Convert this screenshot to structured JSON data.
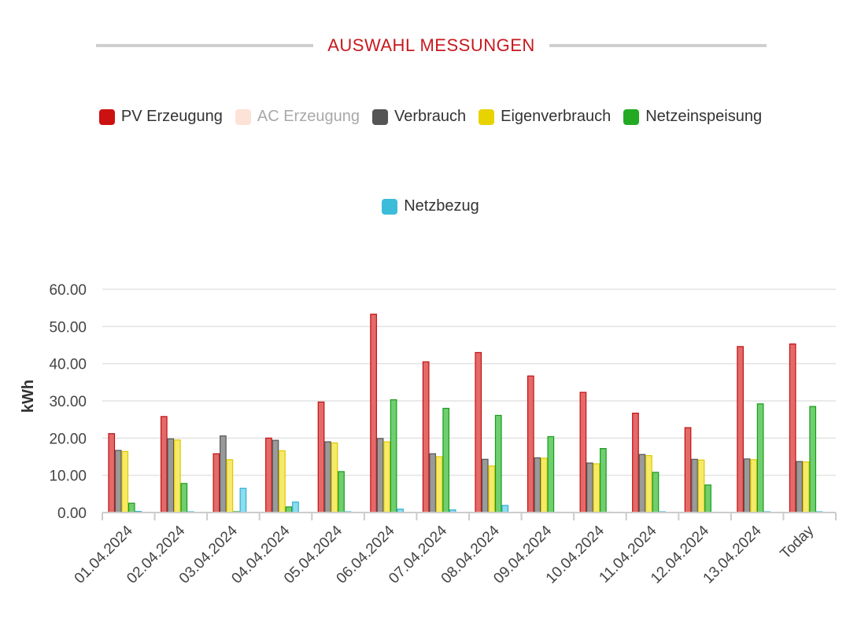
{
  "header": {
    "title": "AUSWAHL MESSUNGEN"
  },
  "legend": [
    {
      "label": "PV Erzeugung",
      "color": "#cc1111",
      "hidden": false
    },
    {
      "label": "AC Erzeugung",
      "color": "#fde2d8",
      "hidden": true
    },
    {
      "label": "Verbrauch",
      "color": "#555555",
      "hidden": false
    },
    {
      "label": "Eigenverbrauch",
      "color": "#e8d200",
      "hidden": false
    },
    {
      "label": "Netzeinspeisung",
      "color": "#22aa22",
      "hidden": false
    },
    {
      "label": "Netzbezug",
      "color": "#3bbcd8",
      "hidden": false
    }
  ],
  "chart_data": {
    "type": "bar",
    "ylabel": "kWh",
    "xlabel": "",
    "ylim": [
      0,
      60
    ],
    "yticks": [
      "0.00",
      "10.00",
      "20.00",
      "30.00",
      "40.00",
      "50.00",
      "60.00"
    ],
    "grid": true,
    "categories": [
      "01.04.2024",
      "02.04.2024",
      "03.04.2024",
      "04.04.2024",
      "05.04.2024",
      "06.04.2024",
      "07.04.2024",
      "08.04.2024",
      "09.04.2024",
      "10.04.2024",
      "11.04.2024",
      "12.04.2024",
      "13.04.2024",
      "Today"
    ],
    "series": [
      {
        "name": "PV Erzeugung",
        "fill": "#e46a6a",
        "stroke": "#c21010",
        "values": [
          21.2,
          25.8,
          15.8,
          20.0,
          29.7,
          53.3,
          40.5,
          43.0,
          36.7,
          32.3,
          26.7,
          22.8,
          44.6,
          45.3
        ]
      },
      {
        "name": "Verbrauch",
        "fill": "#9a9a9a",
        "stroke": "#555555",
        "values": [
          16.7,
          19.8,
          20.6,
          19.4,
          19.0,
          19.9,
          15.8,
          14.3,
          14.7,
          13.3,
          15.6,
          14.3,
          14.4,
          13.7
        ]
      },
      {
        "name": "Eigenverbrauch",
        "fill": "#f5ea6a",
        "stroke": "#e0c800",
        "values": [
          16.4,
          19.5,
          14.2,
          16.6,
          18.7,
          19.0,
          15.0,
          12.5,
          14.6,
          13.1,
          15.3,
          14.1,
          14.2,
          13.6
        ]
      },
      {
        "name": "Netzeinspeisung",
        "fill": "#6fcf6f",
        "stroke": "#1a9a1a",
        "values": [
          2.5,
          7.8,
          0.0,
          1.5,
          11.0,
          30.3,
          28.0,
          26.1,
          20.4,
          17.2,
          10.8,
          7.4,
          29.2,
          28.5
        ]
      },
      {
        "name": "Netzbezug",
        "fill": "#8edcee",
        "stroke": "#2ab0d0",
        "values": [
          0.3,
          0.2,
          6.5,
          2.8,
          0.2,
          0.9,
          0.7,
          1.9,
          0.1,
          0.1,
          0.2,
          0.1,
          0.2,
          0.2
        ]
      }
    ]
  }
}
